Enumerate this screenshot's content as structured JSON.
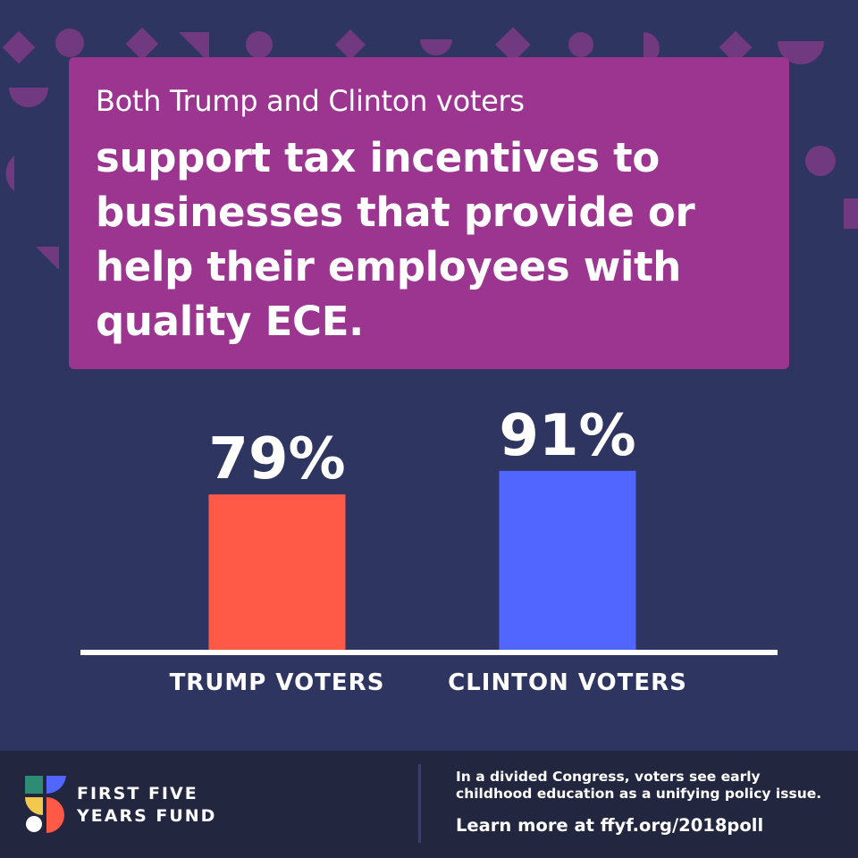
{
  "header": {
    "lead": "Both Trump and Clinton voters",
    "main": "support tax incentives to businesses that provide or help their employees with quality ECE."
  },
  "chart_data": {
    "type": "bar",
    "categories": [
      "TRUMP VOTERS",
      "CLINTON VOTERS"
    ],
    "values": [
      79,
      91
    ],
    "value_labels": [
      "79%",
      "91%"
    ],
    "colors": [
      "#ff5a47",
      "#5066ff"
    ],
    "ylim": [
      0,
      100
    ],
    "grid": false
  },
  "footer": {
    "logo_line1": "FIRST FIVE",
    "logo_line2": "YEARS FUND",
    "note": "In a divided Congress, voters see early childhood education as a unifying policy issue.",
    "link": "Learn more at ffyf.org/2018poll"
  },
  "colors": {
    "background": "#2e3560",
    "headline_box": "#9b3590",
    "footer": "#22263f",
    "decor_shapes": "#7d3a86"
  }
}
